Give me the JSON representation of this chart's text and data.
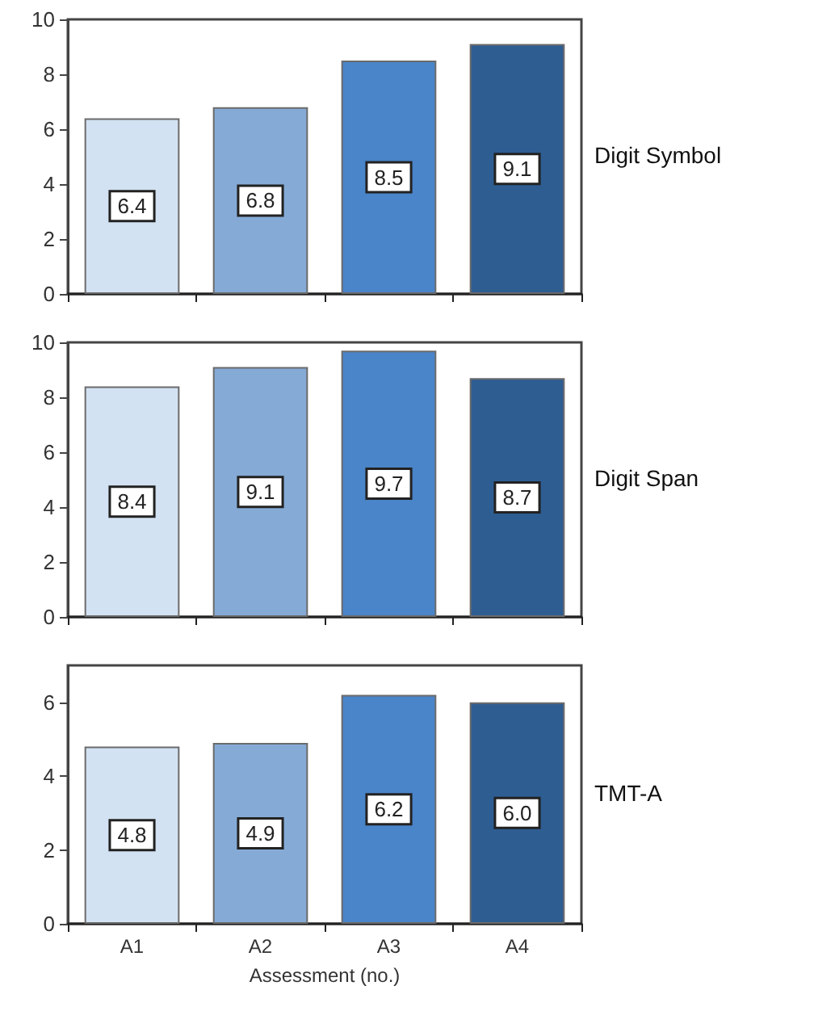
{
  "chart_data": [
    {
      "type": "bar",
      "annotations": [
        "Digit Symbol"
      ],
      "categories": [
        null,
        null,
        null,
        null
      ],
      "values": [
        6.4,
        6.8,
        8.5,
        9.1
      ],
      "value_labels": [
        "6.4",
        "6.8",
        "8.5",
        "9.1"
      ],
      "colors": [
        "#d3e2f2",
        "#85aad6",
        "#4a84c9",
        "#2e5d92"
      ],
      "ylim": [
        0,
        10
      ],
      "yticks": [
        0,
        2,
        4,
        6,
        8,
        10
      ],
      "grid": false
    },
    {
      "type": "bar",
      "annotations": [
        "Digit Span"
      ],
      "categories": [
        null,
        null,
        null,
        null
      ],
      "values": [
        8.4,
        9.1,
        9.7,
        8.7
      ],
      "value_labels": [
        "8.4",
        "9.1",
        "9.7",
        "8.7"
      ],
      "colors": [
        "#d3e2f2",
        "#85aad6",
        "#4a84c9",
        "#2e5d92"
      ],
      "ylim": [
        0,
        10
      ],
      "yticks": [
        0,
        2,
        4,
        6,
        8,
        10
      ],
      "grid": false
    },
    {
      "type": "bar",
      "annotations": [
        "TMT-A"
      ],
      "xlabel": "Assessment (no.)",
      "categories": [
        "A1",
        "A2",
        "A3",
        "A4"
      ],
      "values": [
        4.8,
        4.9,
        6.2,
        6.0
      ],
      "value_labels": [
        "4.8",
        "4.9",
        "6.2",
        "6.0"
      ],
      "colors": [
        "#d3e2f2",
        "#85aad6",
        "#4a84c9",
        "#2e5d92"
      ],
      "ylim": [
        0,
        7
      ],
      "yticks": [
        0,
        2,
        4,
        6
      ],
      "grid": false
    }
  ]
}
